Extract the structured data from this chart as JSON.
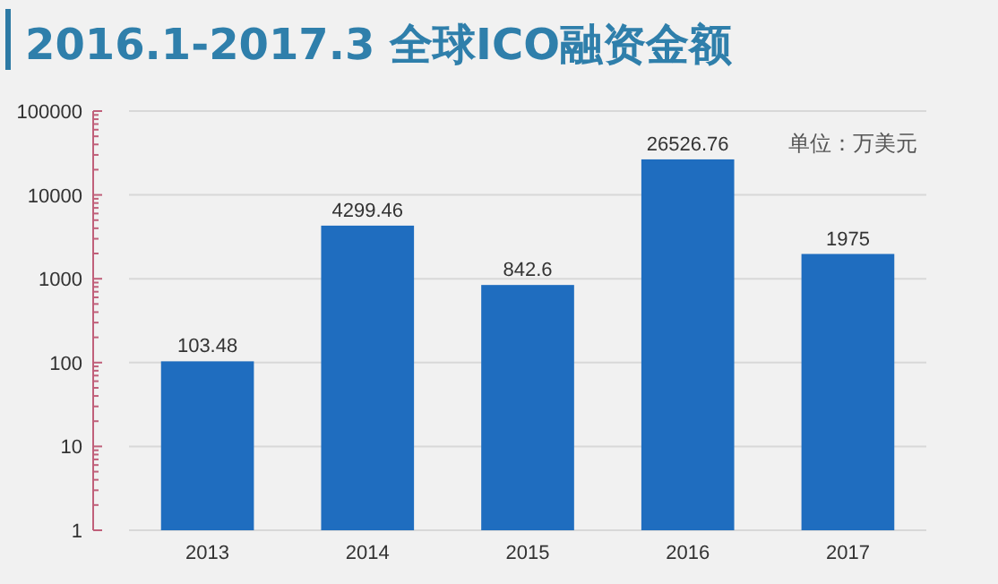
{
  "chart_data": {
    "type": "bar",
    "title": "2016.1-2017.3 全球ICO融资金额",
    "annotations": [
      "单位：万美元"
    ],
    "categories": [
      "2013",
      "2014",
      "2015",
      "2016",
      "2017"
    ],
    "values": [
      103.48,
      4299.46,
      842.6,
      26526.76,
      1975
    ],
    "color": "#1f6dbf",
    "log": true,
    "ylim": [
      1,
      100000
    ],
    "yticks": [
      1,
      10,
      100,
      1000,
      10000,
      100000
    ],
    "grid": "y",
    "data_labels": true
  }
}
